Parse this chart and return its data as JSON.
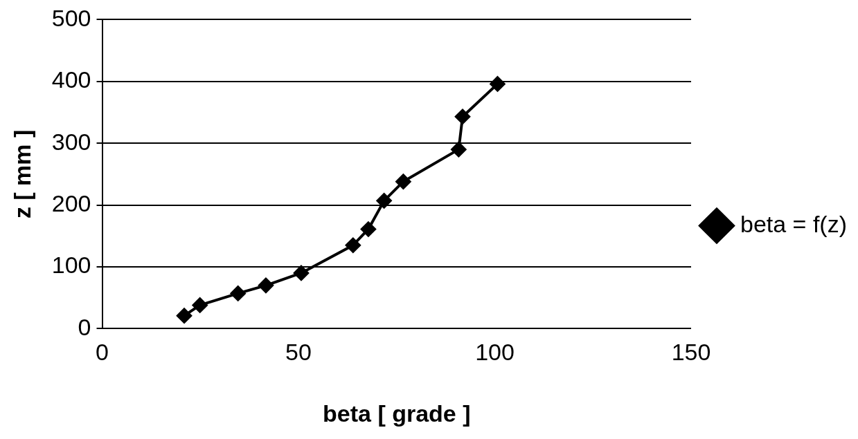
{
  "chart_data": {
    "type": "line",
    "xlabel": "beta [ grade ]",
    "ylabel": "z [ mm ]",
    "x": [
      20.9,
      24.9,
      34.6,
      41.7,
      50.7,
      63.9,
      67.8,
      71.8,
      76.7,
      90.8,
      91.8,
      100.7
    ],
    "series": [
      {
        "name": "beta = f(z)",
        "color": "#000000",
        "values": [
          21,
          38,
          57,
          70,
          90,
          135,
          161,
          207,
          238,
          290,
          343,
          396
        ]
      }
    ],
    "xlim": [
      0,
      150
    ],
    "xticks": [
      0,
      50,
      100,
      150
    ],
    "ylim": [
      0,
      500
    ],
    "yticks": [
      0,
      100,
      200,
      300,
      400,
      500
    ],
    "grid": "y",
    "legend": "right",
    "marker": "diamond",
    "line_style": "solid"
  }
}
